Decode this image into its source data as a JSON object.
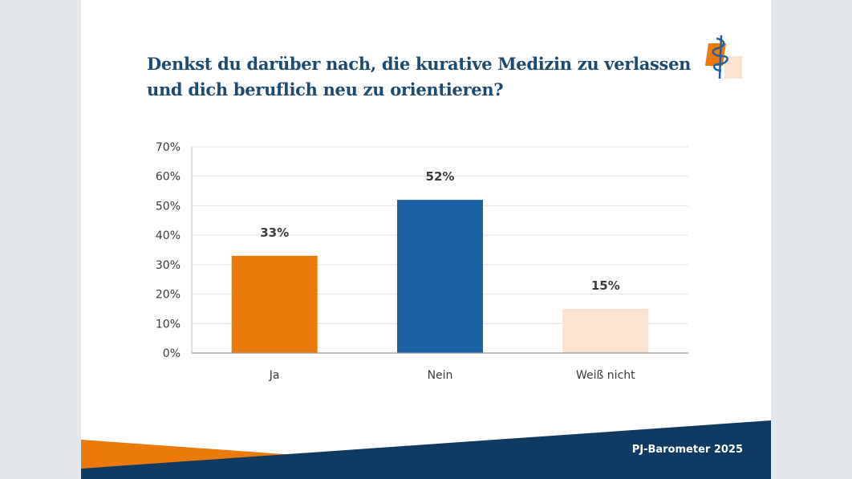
{
  "slide": {
    "title_line1": "Denkst du darüber nach, die kurative Medizin zu verlassen",
    "title_line2": "und dich beruflich neu zu orientieren?",
    "footer_label": "PJ-Barometer 2025",
    "logo_icon": "caduceus-icon",
    "colors": {
      "title": "#1b4a72",
      "footer_band": "#0f3b62",
      "footer_accent": "#ec7a0a"
    }
  },
  "chart_data": {
    "type": "bar",
    "categories": [
      "Ja",
      "Nein",
      "Weiß nicht"
    ],
    "values": [
      33,
      52,
      15
    ],
    "value_labels": [
      "33%",
      "52%",
      "15%"
    ],
    "colors": [
      "#ec7a0a",
      "#1a62a3",
      "#fbe3cf"
    ],
    "y_ticks": [
      "0%",
      "10%",
      "20%",
      "30%",
      "40%",
      "50%",
      "60%",
      "70%"
    ],
    "ylim": [
      0,
      70
    ],
    "grid": true,
    "title": "",
    "xlabel": "",
    "ylabel": ""
  }
}
